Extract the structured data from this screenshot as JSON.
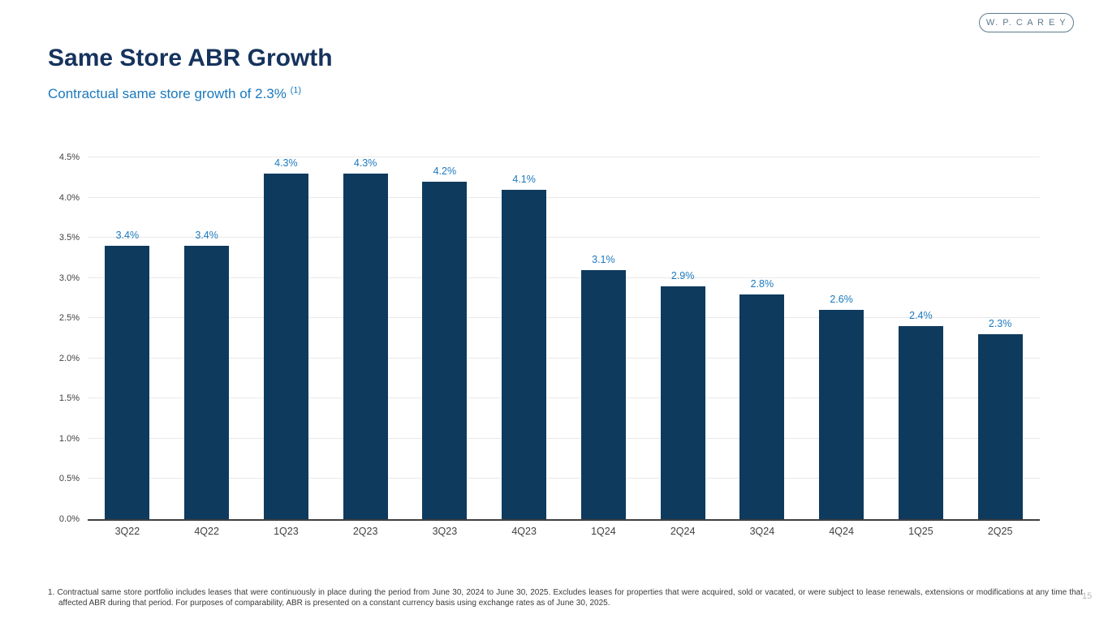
{
  "page": {
    "logo_text": "W. P. C A R E Y",
    "title": "Same Store ABR Growth",
    "subtitle": "Contractual same store growth of 2.3%",
    "subtitle_superscript": "(1)",
    "footnote_marker": "1.",
    "footnote_text": "Contractual same store portfolio includes leases that were continuously in place during the period from June 30, 2024 to June 30, 2025. Excludes leases for properties that were acquired, sold or vacated, or were subject to lease renewals, extensions or modifications at any time that affected ABR during that period. For purposes of comparability, ABR is presented on a constant currency basis using exchange rates as of June 30, 2025.",
    "page_number": "15"
  },
  "colors": {
    "bar": "#0e3a5e",
    "data_label": "#1b79bf",
    "title": "#16335d",
    "subtitle": "#1b79bf",
    "gridline": "#e9e9e9",
    "axis_line": "#3f3f3f",
    "tick_text": "#404040",
    "footnote_text": "#3a3a3a",
    "logo": "#5d7b8c",
    "page_number": "#b8b8b8"
  },
  "chart_data": {
    "type": "bar",
    "title": "Same Store ABR Growth",
    "xlabel": "",
    "ylabel": "",
    "categories": [
      "3Q22",
      "4Q22",
      "1Q23",
      "2Q23",
      "3Q23",
      "4Q23",
      "1Q24",
      "2Q24",
      "3Q24",
      "4Q24",
      "1Q25",
      "2Q25"
    ],
    "values": [
      3.4,
      3.4,
      4.3,
      4.3,
      4.2,
      4.1,
      3.1,
      2.9,
      2.8,
      2.6,
      2.4,
      2.3
    ],
    "data_labels": [
      "3.4%",
      "3.4%",
      "4.3%",
      "4.3%",
      "4.2%",
      "4.1%",
      "3.1%",
      "2.9%",
      "2.8%",
      "2.6%",
      "2.4%",
      "2.3%"
    ],
    "ylim": [
      0,
      4.5
    ],
    "ytick_values": [
      0.0,
      0.5,
      1.0,
      1.5,
      2.0,
      2.5,
      3.0,
      3.5,
      4.0,
      4.5
    ],
    "ytick_labels": [
      "0.0%",
      "0.5%",
      "1.0%",
      "1.5%",
      "2.0%",
      "2.5%",
      "3.0%",
      "3.5%",
      "4.0%",
      "4.5%"
    ],
    "grid": true,
    "legend": false
  }
}
